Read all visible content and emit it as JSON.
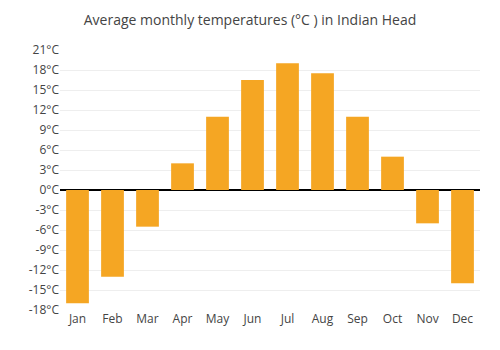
{
  "chart_data": {
    "type": "bar",
    "title": "Average monthly temperatures (°C ) in Indian Head",
    "categories": [
      "Jan",
      "Feb",
      "Mar",
      "Apr",
      "May",
      "Jun",
      "Jul",
      "Aug",
      "Sep",
      "Oct",
      "Nov",
      "Dec"
    ],
    "values": [
      -17,
      -13,
      -5.5,
      4,
      11,
      16.5,
      19,
      17.5,
      11,
      5,
      -5,
      -14
    ],
    "color": "#F5A623",
    "ylim": [
      -18,
      21
    ],
    "yticks": [
      {
        "value": -18,
        "label": "-18°C"
      },
      {
        "value": -15,
        "label": "-15°C"
      },
      {
        "value": -12,
        "label": "-12°C"
      },
      {
        "value": -9,
        "label": "-9°C"
      },
      {
        "value": -6,
        "label": "-6°C"
      },
      {
        "value": -3,
        "label": "-3°C"
      },
      {
        "value": 0,
        "label": "0°C"
      },
      {
        "value": 3,
        "label": "3°C"
      },
      {
        "value": 6,
        "label": "6°C"
      },
      {
        "value": 9,
        "label": "9°C"
      },
      {
        "value": 12,
        "label": "12°C"
      },
      {
        "value": 15,
        "label": "15°C"
      },
      {
        "value": 18,
        "label": "18°C"
      },
      {
        "value": 21,
        "label": "21°C"
      }
    ],
    "grid": true
  }
}
